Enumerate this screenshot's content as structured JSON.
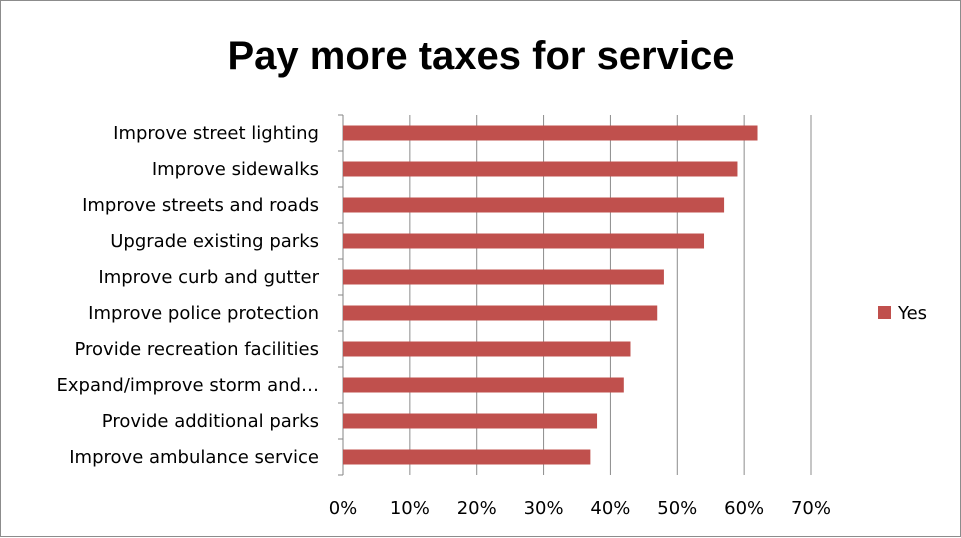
{
  "chart_data": {
    "type": "bar",
    "orientation": "horizontal",
    "title": "Pay more taxes for service",
    "xlabel": "",
    "ylabel": "",
    "categories": [
      "Improve street lighting",
      "Improve sidewalks",
      "Improve streets and roads",
      "Upgrade existing parks",
      "Improve curb and gutter",
      "Improve police protection",
      "Provide recreation facilities",
      "Expand/improve storm and…",
      "Provide additional parks",
      "Improve ambulance service"
    ],
    "series": [
      {
        "name": "Yes",
        "color": "#c0504d",
        "values": [
          0.62,
          0.59,
          0.57,
          0.54,
          0.48,
          0.47,
          0.43,
          0.42,
          0.38,
          0.37
        ]
      }
    ],
    "xlim": [
      0,
      0.7
    ],
    "ticks": [
      0,
      0.1,
      0.2,
      0.3,
      0.4,
      0.5,
      0.6,
      0.7
    ],
    "tick_labels": [
      "0%",
      "10%",
      "20%",
      "30%",
      "40%",
      "50%",
      "60%",
      "70%"
    ],
    "grid": "vertical",
    "legend_position": "right"
  }
}
